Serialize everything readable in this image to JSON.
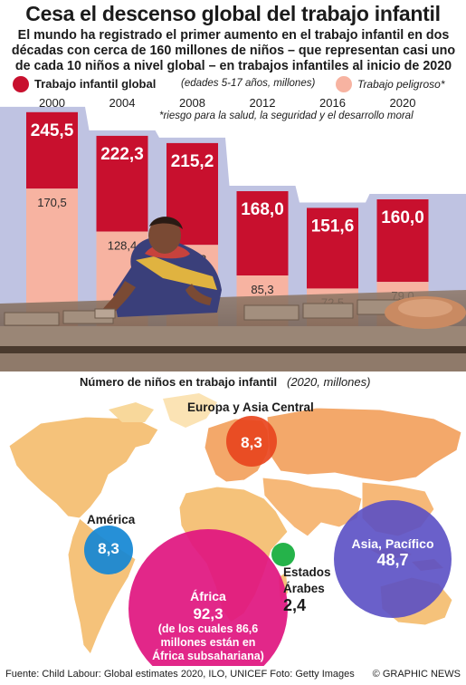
{
  "title": "Cesa el descenso global del trabajo infantil",
  "subtitle_lines": [
    "El mundo ha registrado el primer aumento en el trabajo infantil en dos",
    "décadas con cerca de 160 millones de niños – que representan casi uno",
    "de cada 10 niños a nivel global – en trabajos infantiles al inicio de 2020"
  ],
  "legend": {
    "global_label": "Trabajo infantil global",
    "global_note": "(edades 5-17 años, millones)",
    "hazard_label": "Trabajo peligroso*"
  },
  "footnote": "*riesgo para la salud, la seguridad y el desarrollo moral",
  "colors": {
    "global": "#c8102e",
    "hazard": "#f7b3a1",
    "panel": "#bfc3e2",
    "africa": "#e0157f",
    "asia": "#5a4fc4",
    "europe": "#e8451e",
    "america": "#1487d4",
    "arab": "#25b34a"
  },
  "chart_data": [
    {
      "type": "bar",
      "categories": [
        "2000",
        "2004",
        "2008",
        "2012",
        "2016",
        "2020"
      ],
      "series": [
        {
          "name": "Trabajo infantil global",
          "values": [
            245.5,
            222.3,
            215.2,
            168.0,
            151.6,
            160.0
          ]
        },
        {
          "name": "Trabajo peligroso*",
          "values": [
            170.5,
            128.4,
            115.3,
            85.3,
            72.5,
            79.0
          ]
        }
      ],
      "labels_global": [
        "245,5",
        "222,3",
        "215,2",
        "168,0",
        "151,6",
        "160,0"
      ],
      "labels_hazard": [
        "170,5",
        "128,4",
        "115,3",
        "85,3",
        "72,5",
        "79,0"
      ]
    },
    {
      "type": "bubble",
      "title": "Número de niños en trabajo infantil",
      "title_note": "(2020, millones)",
      "categories": [
        "Europa y Asia Central",
        "América",
        "Asia, Pacífico",
        "Estados Árabes",
        "África"
      ],
      "values": [
        8.3,
        8.3,
        48.7,
        2.4,
        92.3
      ],
      "value_labels": [
        "8,3",
        "8,3",
        "48,7",
        "2,4",
        "92,3"
      ]
    }
  ],
  "map": {
    "africa_note_lines": [
      "(de los cuales 86,6",
      "millones están en",
      "África subsahariana)"
    ],
    "arab_label_lines": [
      "Estados",
      "Árabes"
    ]
  },
  "source": "Fuente: Child Labour: Global estimates 2020, ILO, UNICEF  Foto: Getty Images",
  "brand": "© GRAPHIC NEWS"
}
